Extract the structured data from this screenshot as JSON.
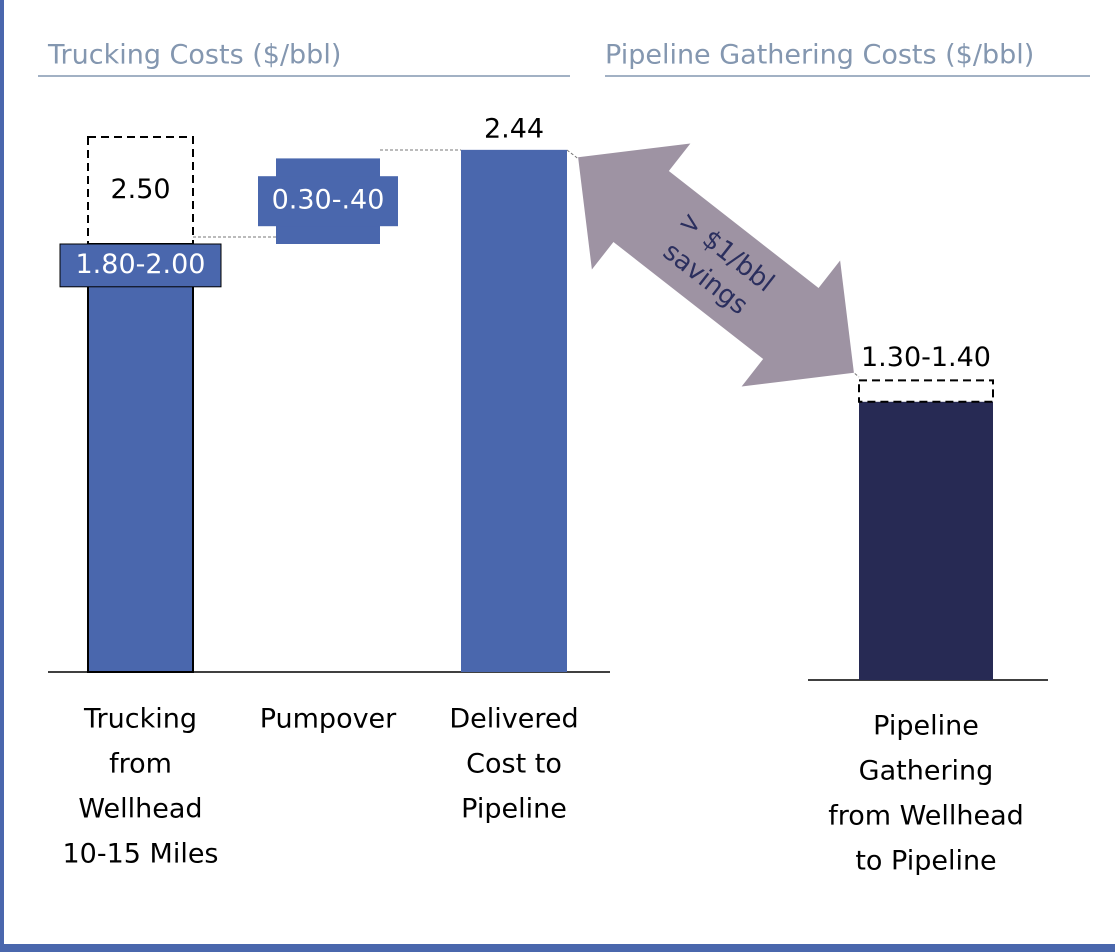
{
  "chart_data": [
    {
      "type": "waterfall",
      "title": "Trucking Costs ($/bbl)",
      "bars": [
        {
          "category": [
            "Trucking",
            "from",
            "Wellhead",
            "10-15 Miles"
          ],
          "low": 1.8,
          "high": 2.0,
          "label": "1.80-2.00",
          "max": 2.5,
          "max_label": "2.50",
          "color": "#4a67ad"
        },
        {
          "category": [
            "Pumpover"
          ],
          "low": 0.3,
          "high": 0.4,
          "label": "0.30-.40",
          "color": "#4a67ad"
        },
        {
          "category": [
            "Delivered",
            "Cost to",
            "Pipeline"
          ],
          "value": 2.44,
          "color": "#4a67ad"
        }
      ]
    },
    {
      "type": "range",
      "title": "Pipeline Gathering Costs ($/bbl)",
      "bars": [
        {
          "category": [
            "Pipeline",
            "Gathering",
            "from Wellhead",
            "to Pipeline"
          ],
          "low": 1.3,
          "high": 1.4,
          "label": "1.30-1.40",
          "color": "#272a54"
        }
      ]
    }
  ],
  "annotation": [
    "> $1/bbl",
    "savings"
  ]
}
